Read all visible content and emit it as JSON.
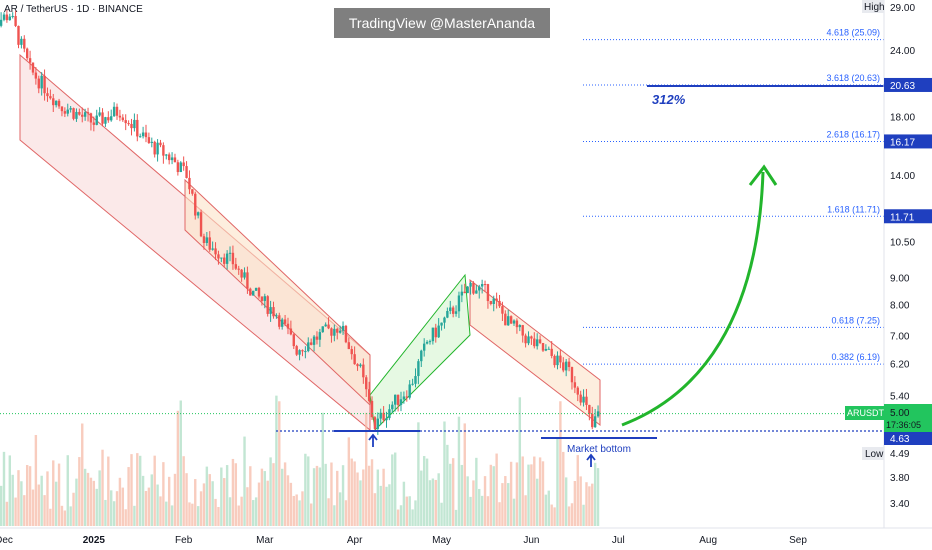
{
  "header": {
    "symbol": "AR / TetherUS · 1D · BINANCE",
    "watermark": "TradingView @MasterAnanda"
  },
  "price_axis": {
    "high_label": "High",
    "high_value": "29.00",
    "low_label": "Low",
    "low_value": "4.49",
    "ticker": "ARUSDT",
    "last_price": "5.00",
    "countdown": "17:36:05",
    "support_price": "4.63"
  },
  "annotations": {
    "percent_gain": "312%",
    "market_bottom": "Market bottom"
  },
  "colors": {
    "up": "#26a69a",
    "down": "#ef5350",
    "fib": "#2962ff",
    "arrow": "#22b52c",
    "price_tag": "#22c55e",
    "support": "#1f3fbf"
  },
  "chart_data": {
    "type": "candlestick",
    "y_scale": "log",
    "y_ticks": [
      29.0,
      24.0,
      20.63,
      18.0,
      16.17,
      14.0,
      11.71,
      10.5,
      9.0,
      8.0,
      7.0,
      6.2,
      5.4,
      5.0,
      4.63,
      4.49,
      3.8,
      3.4
    ],
    "y_tick_labels": [
      "29.00",
      "24.00",
      "20.63",
      "18.00",
      "16.17",
      "14.00",
      "11.71",
      "10.50",
      "9.00",
      "8.00",
      "7.00",
      "6.20",
      "5.40",
      "5.00",
      "4.63",
      "4.49",
      "3.80",
      "3.40"
    ],
    "x_tick_labels": [
      "Dec",
      "2025",
      "Feb",
      "Mar",
      "Apr",
      "May",
      "Jun",
      "Jul",
      "Aug",
      "Sep"
    ],
    "fib_levels": [
      {
        "label": "4.618 (25.09)",
        "value": 25.09
      },
      {
        "label": "3.618 (20.63)",
        "value": 20.63
      },
      {
        "label": "2.618 (16.17)",
        "value": 16.17
      },
      {
        "label": "1.618 (11.71)",
        "value": 11.71
      },
      {
        "label": "0.618 (7.25)",
        "value": 7.25
      },
      {
        "label": "0.382 (6.19)",
        "value": 6.19
      }
    ],
    "high": 29.0,
    "low": 4.49,
    "last": 5.0,
    "support": 4.63,
    "close_path": [
      {
        "date": "2024-11-25",
        "close": 26.5
      },
      {
        "date": "2024-12-03",
        "close": 28.0
      },
      {
        "date": "2024-12-10",
        "close": 22.0
      },
      {
        "date": "2024-12-20",
        "close": 19.0
      },
      {
        "date": "2025-01-01",
        "close": 17.5
      },
      {
        "date": "2025-01-10",
        "close": 18.5
      },
      {
        "date": "2025-01-20",
        "close": 16.0
      },
      {
        "date": "2025-01-28",
        "close": 15.0
      },
      {
        "date": "2025-02-02",
        "close": 14.0
      },
      {
        "date": "2025-02-08",
        "close": 10.5
      },
      {
        "date": "2025-02-18",
        "close": 9.6
      },
      {
        "date": "2025-02-25",
        "close": 8.4
      },
      {
        "date": "2025-03-05",
        "close": 7.7
      },
      {
        "date": "2025-03-12",
        "close": 6.6
      },
      {
        "date": "2025-03-22",
        "close": 7.1
      },
      {
        "date": "2025-03-27",
        "close": 7.3
      },
      {
        "date": "2025-04-03",
        "close": 6.0
      },
      {
        "date": "2025-04-08",
        "close": 4.75
      },
      {
        "date": "2025-04-14",
        "close": 5.2
      },
      {
        "date": "2025-04-20",
        "close": 5.6
      },
      {
        "date": "2025-04-26",
        "close": 6.8
      },
      {
        "date": "2025-05-04",
        "close": 7.7
      },
      {
        "date": "2025-05-11",
        "close": 8.7
      },
      {
        "date": "2025-05-17",
        "close": 8.4
      },
      {
        "date": "2025-05-24",
        "close": 7.4
      },
      {
        "date": "2025-06-01",
        "close": 6.8
      },
      {
        "date": "2025-06-08",
        "close": 6.4
      },
      {
        "date": "2025-06-14",
        "close": 6.0
      },
      {
        "date": "2025-06-19",
        "close": 5.3
      },
      {
        "date": "2025-06-22",
        "close": 4.7
      },
      {
        "date": "2025-06-24",
        "close": 5.0
      }
    ]
  }
}
